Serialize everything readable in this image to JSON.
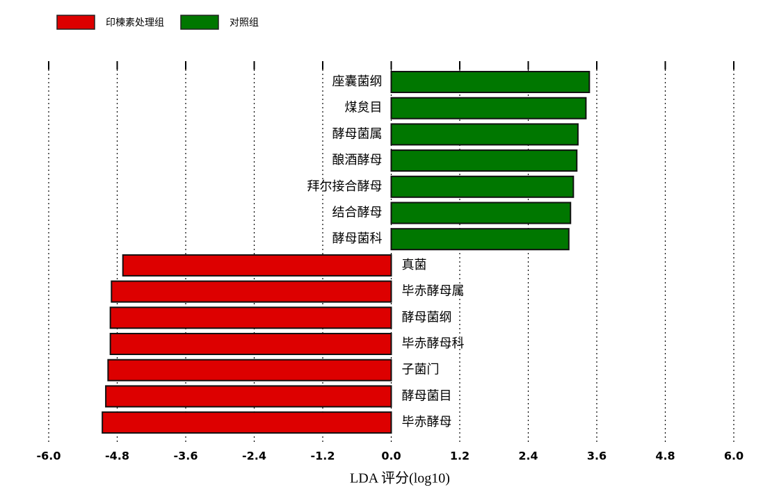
{
  "chart_data": {
    "type": "bar",
    "orientation": "horizontal",
    "categories": [
      "座囊菌纲",
      "煤炱目",
      "酵母菌属",
      "酿酒酵母",
      "拜尔接合酵母",
      "结合酵母",
      "酵母菌科",
      "真菌",
      "毕赤酵母属",
      "酵母菌纲",
      "毕赤酵母科",
      "子菌门",
      "酵母菌目",
      "毕赤酵母"
    ],
    "series": [
      {
        "name": "印楝素处理组",
        "color": "#dd0000",
        "values": [
          null,
          null,
          null,
          null,
          null,
          null,
          null,
          -4.7,
          -4.9,
          -4.92,
          -4.92,
          -4.96,
          -5.0,
          -5.06
        ]
      },
      {
        "name": "对照组",
        "color": "#007700",
        "values": [
          3.47,
          3.41,
          3.27,
          3.25,
          3.19,
          3.14,
          3.11,
          null,
          null,
          null,
          null,
          null,
          null,
          null
        ]
      }
    ],
    "xlabel": "LDA 评分(log10)",
    "xlim": [
      -6,
      6
    ],
    "xticks": [
      {
        "value": -6,
        "label": "-6.0"
      },
      {
        "value": -4.8,
        "label": "-4.8"
      },
      {
        "value": -3.6,
        "label": "-3.6"
      },
      {
        "value": -2.4,
        "label": "-2.4"
      },
      {
        "value": -1.2,
        "label": "-1.2"
      },
      {
        "value": 0,
        "label": "0.0"
      },
      {
        "value": 1.2,
        "label": "1.2"
      },
      {
        "value": 2.4,
        "label": "2.4"
      },
      {
        "value": 3.6,
        "label": "3.6"
      },
      {
        "value": 4.8,
        "label": "4.8"
      },
      {
        "value": 6,
        "label": "6.0"
      }
    ],
    "grid": true,
    "legend": "top-left"
  }
}
